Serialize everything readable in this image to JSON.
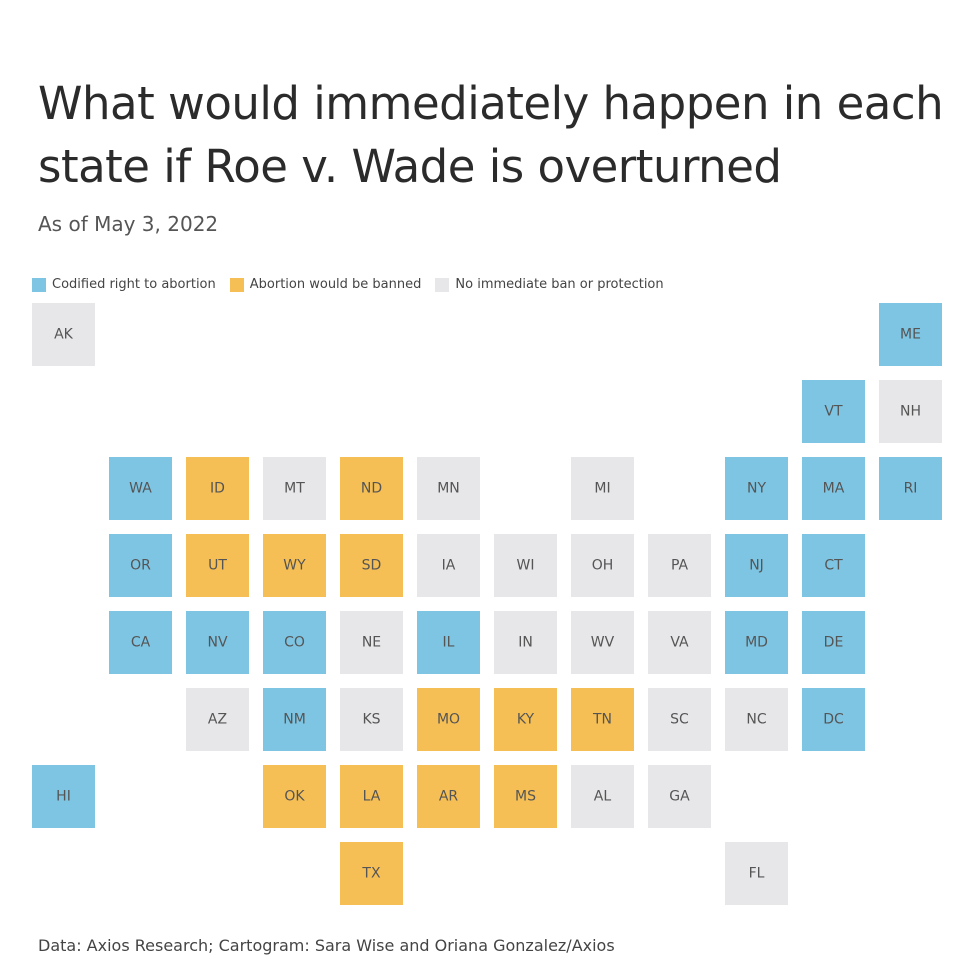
{
  "header": {
    "title": "What would immediately happen in each state if Roe v. Wade is overturned",
    "subtitle": "As of May 3, 2022"
  },
  "legend": [
    {
      "label": "Codified right to abortion",
      "color": "#7ec5e3"
    },
    {
      "label": "Abortion would be banned",
      "color": "#f5bf55"
    },
    {
      "label": "No immediate ban or protection",
      "color": "#e7e7e9"
    }
  ],
  "map": {
    "rows": [
      [
        {
          "state": "AK",
          "category": "No immediate ban or protection"
        },
        null,
        null,
        null,
        null,
        null,
        null,
        null,
        null,
        null,
        null,
        {
          "state": "ME",
          "category": "Codified right to abortion"
        }
      ],
      [
        null,
        null,
        null,
        null,
        null,
        null,
        null,
        null,
        null,
        null,
        {
          "state": "VT",
          "category": "Codified right to abortion"
        },
        {
          "state": "NH",
          "category": "No immediate ban or protection"
        }
      ],
      [
        null,
        {
          "state": "WA",
          "category": "Codified right to abortion"
        },
        {
          "state": "ID",
          "category": "Abortion would be banned"
        },
        {
          "state": "MT",
          "category": "No immediate ban or protection"
        },
        {
          "state": "ND",
          "category": "Abortion would be banned"
        },
        {
          "state": "MN",
          "category": "No immediate ban or protection"
        },
        null,
        {
          "state": "MI",
          "category": "No immediate ban or protection"
        },
        null,
        {
          "state": "NY",
          "category": "Codified right to abortion"
        },
        {
          "state": "MA",
          "category": "Codified right to abortion"
        },
        {
          "state": "RI",
          "category": "Codified right to abortion"
        }
      ],
      [
        null,
        {
          "state": "OR",
          "category": "Codified right to abortion"
        },
        {
          "state": "UT",
          "category": "Abortion would be banned"
        },
        {
          "state": "WY",
          "category": "Abortion would be banned"
        },
        {
          "state": "SD",
          "category": "Abortion would be banned"
        },
        {
          "state": "IA",
          "category": "No immediate ban or protection"
        },
        {
          "state": "WI",
          "category": "No immediate ban or protection"
        },
        {
          "state": "OH",
          "category": "No immediate ban or protection"
        },
        {
          "state": "PA",
          "category": "No immediate ban or protection"
        },
        {
          "state": "NJ",
          "category": "Codified right to abortion"
        },
        {
          "state": "CT",
          "category": "Codified right to abortion"
        },
        null
      ],
      [
        null,
        {
          "state": "CA",
          "category": "Codified right to abortion"
        },
        {
          "state": "NV",
          "category": "Codified right to abortion"
        },
        {
          "state": "CO",
          "category": "Codified right to abortion"
        },
        {
          "state": "NE",
          "category": "No immediate ban or protection"
        },
        {
          "state": "IL",
          "category": "Codified right to abortion"
        },
        {
          "state": "IN",
          "category": "No immediate ban or protection"
        },
        {
          "state": "WV",
          "category": "No immediate ban or protection"
        },
        {
          "state": "VA",
          "category": "No immediate ban or protection"
        },
        {
          "state": "MD",
          "category": "Codified right to abortion"
        },
        {
          "state": "DE",
          "category": "Codified right to abortion"
        },
        null
      ],
      [
        null,
        null,
        {
          "state": "AZ",
          "category": "No immediate ban or protection"
        },
        {
          "state": "NM",
          "category": "Codified right to abortion"
        },
        {
          "state": "KS",
          "category": "No immediate ban or protection"
        },
        {
          "state": "MO",
          "category": "Abortion would be banned"
        },
        {
          "state": "KY",
          "category": "Abortion would be banned"
        },
        {
          "state": "TN",
          "category": "Abortion would be banned"
        },
        {
          "state": "SC",
          "category": "No immediate ban or protection"
        },
        {
          "state": "NC",
          "category": "No immediate ban or protection"
        },
        {
          "state": "DC",
          "category": "Codified right to abortion"
        },
        null
      ],
      [
        {
          "state": "HI",
          "category": "Codified right to abortion"
        },
        null,
        null,
        {
          "state": "OK",
          "category": "Abortion would be banned"
        },
        {
          "state": "LA",
          "category": "Abortion would be banned"
        },
        {
          "state": "AR",
          "category": "Abortion would be banned"
        },
        {
          "state": "MS",
          "category": "Abortion would be banned"
        },
        {
          "state": "AL",
          "category": "No immediate ban or protection"
        },
        {
          "state": "GA",
          "category": "No immediate ban or protection"
        },
        null,
        null,
        null
      ],
      [
        null,
        null,
        null,
        null,
        {
          "state": "TX",
          "category": "Abortion would be banned"
        },
        null,
        null,
        null,
        null,
        {
          "state": "FL",
          "category": "No immediate ban or protection"
        },
        null,
        null
      ]
    ]
  },
  "footer": {
    "source": "Data: Axios Research; Cartogram: Sara Wise and Oriana Gonzalez/Axios"
  }
}
